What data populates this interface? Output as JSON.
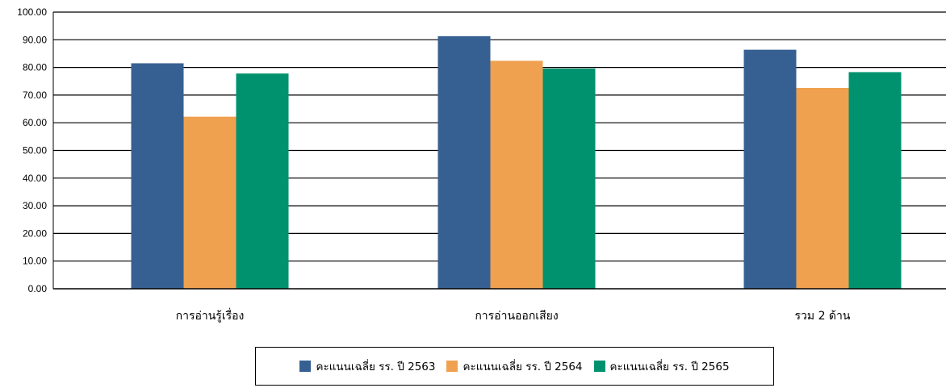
{
  "chart_data": {
    "type": "bar",
    "categories": [
      "การอ่านรู้เรื่อง",
      "การอ่านออกเสียง",
      "รวม 2 ด้าน"
    ],
    "series": [
      {
        "name": "คะแนนเฉลี่ย รร. ปี 2563",
        "color": "#376092",
        "values": [
          81.5,
          91.3,
          86.4
        ]
      },
      {
        "name": "คะแนนเฉลี่ย รร. ปี 2564",
        "color": "#F0A14F",
        "values": [
          62.2,
          82.4,
          72.6
        ]
      },
      {
        "name": "คะแนนเฉลี่ย รร. ปี 2565",
        "color": "#00926E",
        "values": [
          77.8,
          79.6,
          78.3
        ]
      }
    ],
    "yticks": [
      "0.00",
      "10.00",
      "20.00",
      "30.00",
      "40.00",
      "50.00",
      "60.00",
      "70.00",
      "80.00",
      "90.00",
      "100.00"
    ],
    "ylim": [
      0,
      100
    ],
    "grid": true,
    "legend_position": "bottom",
    "title": "",
    "xlabel": "",
    "ylabel": ""
  }
}
